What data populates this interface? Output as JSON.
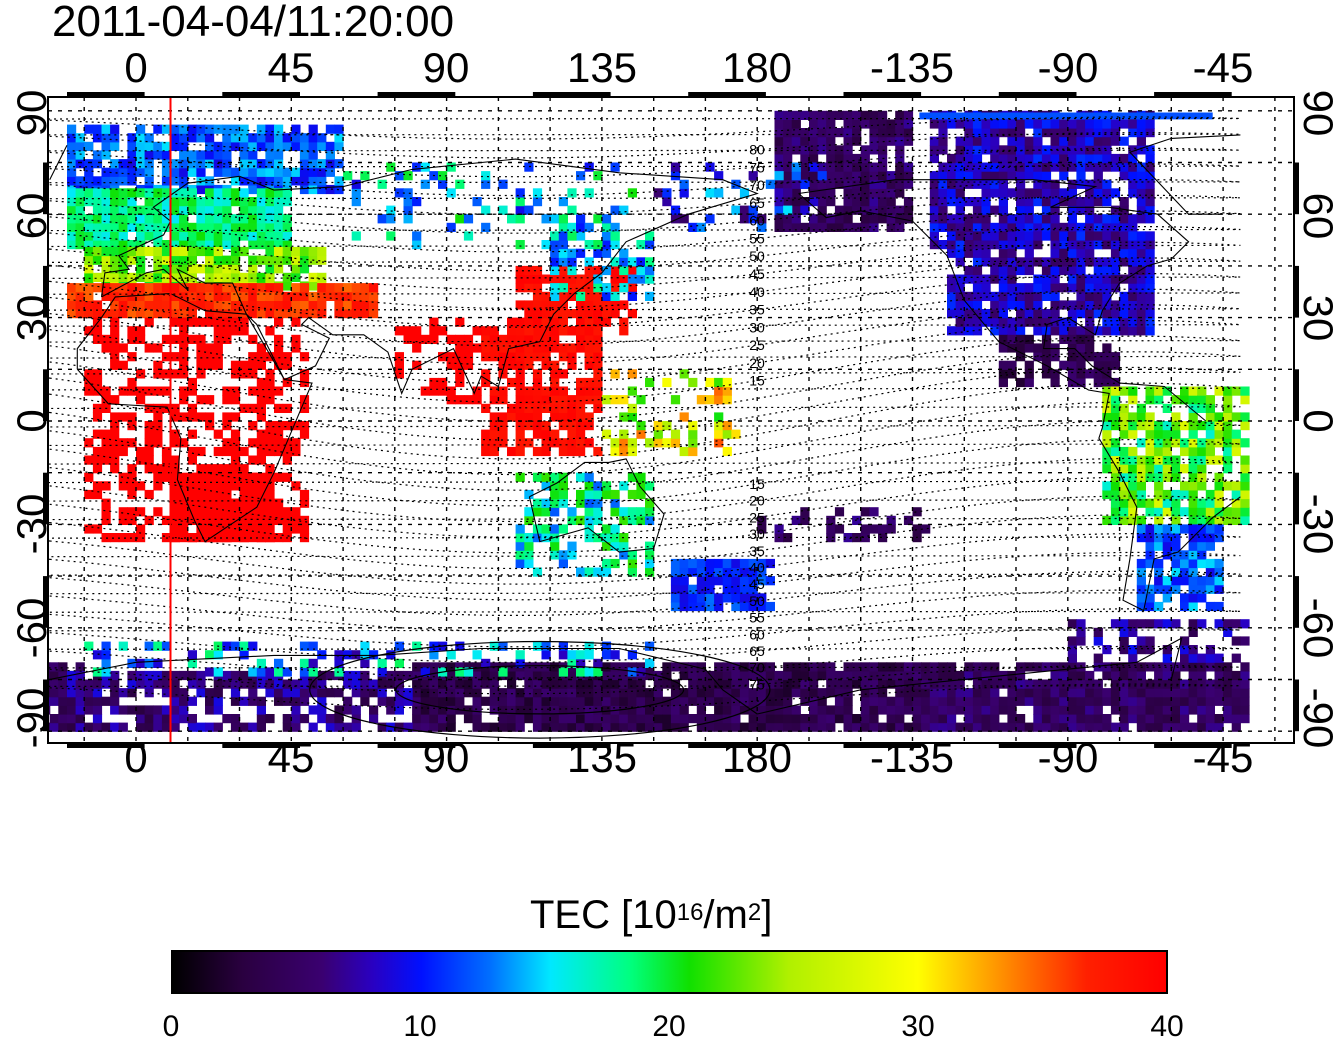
{
  "timestamp": "2011-04-04/11:20:00",
  "longitude_ticks": [
    "0",
    "45",
    "90",
    "135",
    "180",
    "-135",
    "-90",
    "-45"
  ],
  "latitude_ticks": [
    "90",
    "60",
    "30",
    "0",
    "-30",
    "-60",
    "-90"
  ],
  "contour_labels_north": [
    "80",
    "75",
    "70",
    "65",
    "60",
    "55",
    "50",
    "45",
    "40",
    "35",
    "30",
    "25",
    "20",
    "15"
  ],
  "contour_labels_south": [
    "15",
    "20",
    "25",
    "30",
    "35",
    "40",
    "45",
    "50",
    "55",
    "60",
    "65",
    "70",
    "75"
  ],
  "marker_longitude": 10,
  "colorbar": {
    "title_prefix": "TEC  [10",
    "title_exp1": "16",
    "title_mid": "/m",
    "title_exp2": "2",
    "title_suffix": "]",
    "ticks": [
      "0",
      "10",
      "20",
      "30",
      "40"
    ],
    "min": 0,
    "max": 40
  },
  "colors": {
    "marker_line": "#ff0000",
    "tec_low": "#000000",
    "tec_mid": "#00ff80",
    "tec_high": "#ff0000"
  }
}
